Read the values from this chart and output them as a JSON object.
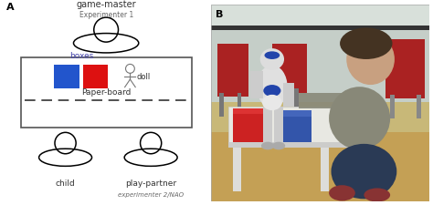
{
  "panel_A_label": "A",
  "panel_B_label": "B",
  "game_master_label": "game-master",
  "experimenter1_label": "Experimenter 1",
  "child_label": "child",
  "play_partner_label": "play-partner",
  "experimenter2_label": "experimenter 2/NAO",
  "boxes_label": "boxes",
  "doll_label": "doll",
  "paper_board_label": "Paper-board",
  "blue_box_color": "#2255cc",
  "red_box_color": "#dd1111",
  "bg_color": "#ffffff",
  "border_color": "#555555",
  "text_color": "#333333",
  "photo_bg_ceil": "#c8d4cc",
  "photo_bg_floor": "#c8a860",
  "photo_chair_color": "#bb3333",
  "photo_robot_blue": "#2244aa",
  "photo_robot_white": "#e8e8e8",
  "photo_child_shirt": "#888880",
  "photo_child_pants": "#334466",
  "photo_table_color": "#e8e8e0",
  "photo_box_blue": "#3355aa",
  "photo_box_red": "#cc2222"
}
